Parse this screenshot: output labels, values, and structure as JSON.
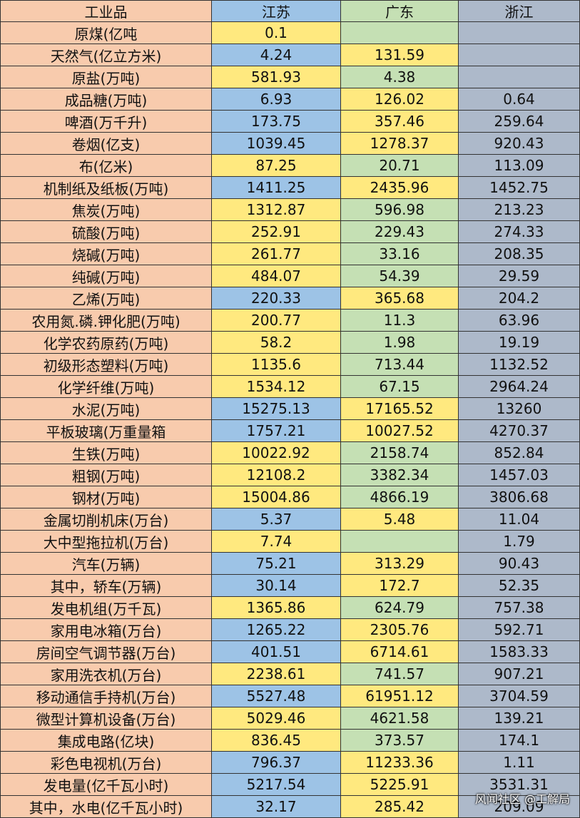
{
  "table": {
    "header": [
      "工业品",
      "江苏",
      "广东",
      "浙江"
    ],
    "rows": [
      [
        "原煤(亿吨",
        0.1,
        null,
        null
      ],
      [
        "天然气(亿立方米)",
        4.24,
        131.59,
        null
      ],
      [
        "原盐(万吨)",
        581.93,
        4.38,
        null
      ],
      [
        "成品糖(万吨)",
        6.93,
        126.02,
        0.64
      ],
      [
        "啤酒(万千升)",
        173.75,
        357.46,
        259.64
      ],
      [
        "卷烟(亿支)",
        1039.45,
        1278.37,
        920.43
      ],
      [
        "布(亿米)",
        87.25,
        20.71,
        113.09
      ],
      [
        "机制纸及纸板(万吨)",
        1411.25,
        2435.96,
        1452.75
      ],
      [
        "焦炭(万吨)",
        1312.87,
        596.98,
        213.23
      ],
      [
        "硫酸(万吨)",
        252.91,
        229.43,
        274.33
      ],
      [
        "烧碱(万吨)",
        261.77,
        33.16,
        208.35
      ],
      [
        "纯碱(万吨)",
        484.07,
        54.39,
        29.59
      ],
      [
        "乙烯(万吨)",
        220.33,
        365.68,
        204.2
      ],
      [
        "农用氮.磷.钾化肥(万吨)",
        200.77,
        11.3,
        63.96
      ],
      [
        "化学农药原药(万吨)",
        58.2,
        1.98,
        19.19
      ],
      [
        "初级形态塑料(万吨)",
        1135.6,
        713.44,
        1132.52
      ],
      [
        "化学纤维(万吨)",
        1534.12,
        67.15,
        2964.24
      ],
      [
        "水泥(万吨)",
        15275.13,
        17165.52,
        13260
      ],
      [
        "平板玻璃(万重量箱",
        1757.21,
        10027.52,
        4270.37
      ],
      [
        "生铁(万吨)",
        10022.92,
        2158.74,
        852.84
      ],
      [
        "粗钢(万吨)",
        12108.2,
        3382.34,
        1457.03
      ],
      [
        "钢材(万吨)",
        15004.86,
        4866.19,
        3806.68
      ],
      [
        "金属切削机床(万台)",
        5.37,
        5.48,
        11.04
      ],
      [
        "大中型拖拉机(万台)",
        7.74,
        null,
        1.79
      ],
      [
        "汽车(万辆)",
        75.21,
        313.29,
        90.43
      ],
      [
        "其中，轿车(万辆)",
        30.14,
        172.7,
        52.35
      ],
      [
        "发电机组(万千瓦)",
        1365.86,
        624.79,
        757.38
      ],
      [
        "家用电冰箱(万台)",
        1265.22,
        2305.76,
        592.71
      ],
      [
        "房间空气调节器(万台)",
        401.51,
        6714.61,
        1583.33
      ],
      [
        "家用洗衣机(万台)",
        2238.61,
        741.57,
        907.21
      ],
      [
        "移动通信手持机(万台)",
        5527.48,
        61951.12,
        3704.59
      ],
      [
        "微型计算机设备(万台)",
        5029.46,
        4621.58,
        139.21
      ],
      [
        "集成电路(亿块)",
        836.45,
        373.57,
        174.1
      ],
      [
        "彩色电视机(万台)",
        796.37,
        11233.36,
        1.11
      ],
      [
        "发电量(亿千瓦小时)",
        5217.54,
        5225.91,
        3531.31
      ],
      [
        "其中，水电(亿千瓦小时)",
        32.17,
        285.42,
        209.09
      ]
    ],
    "column_colors": [
      "#f8cbad",
      "#9dc3e6",
      "#c5e0b4",
      "#adb9ca"
    ],
    "highlight_color": "#ffe97f",
    "watermark": "风闻社区 @工解局"
  }
}
